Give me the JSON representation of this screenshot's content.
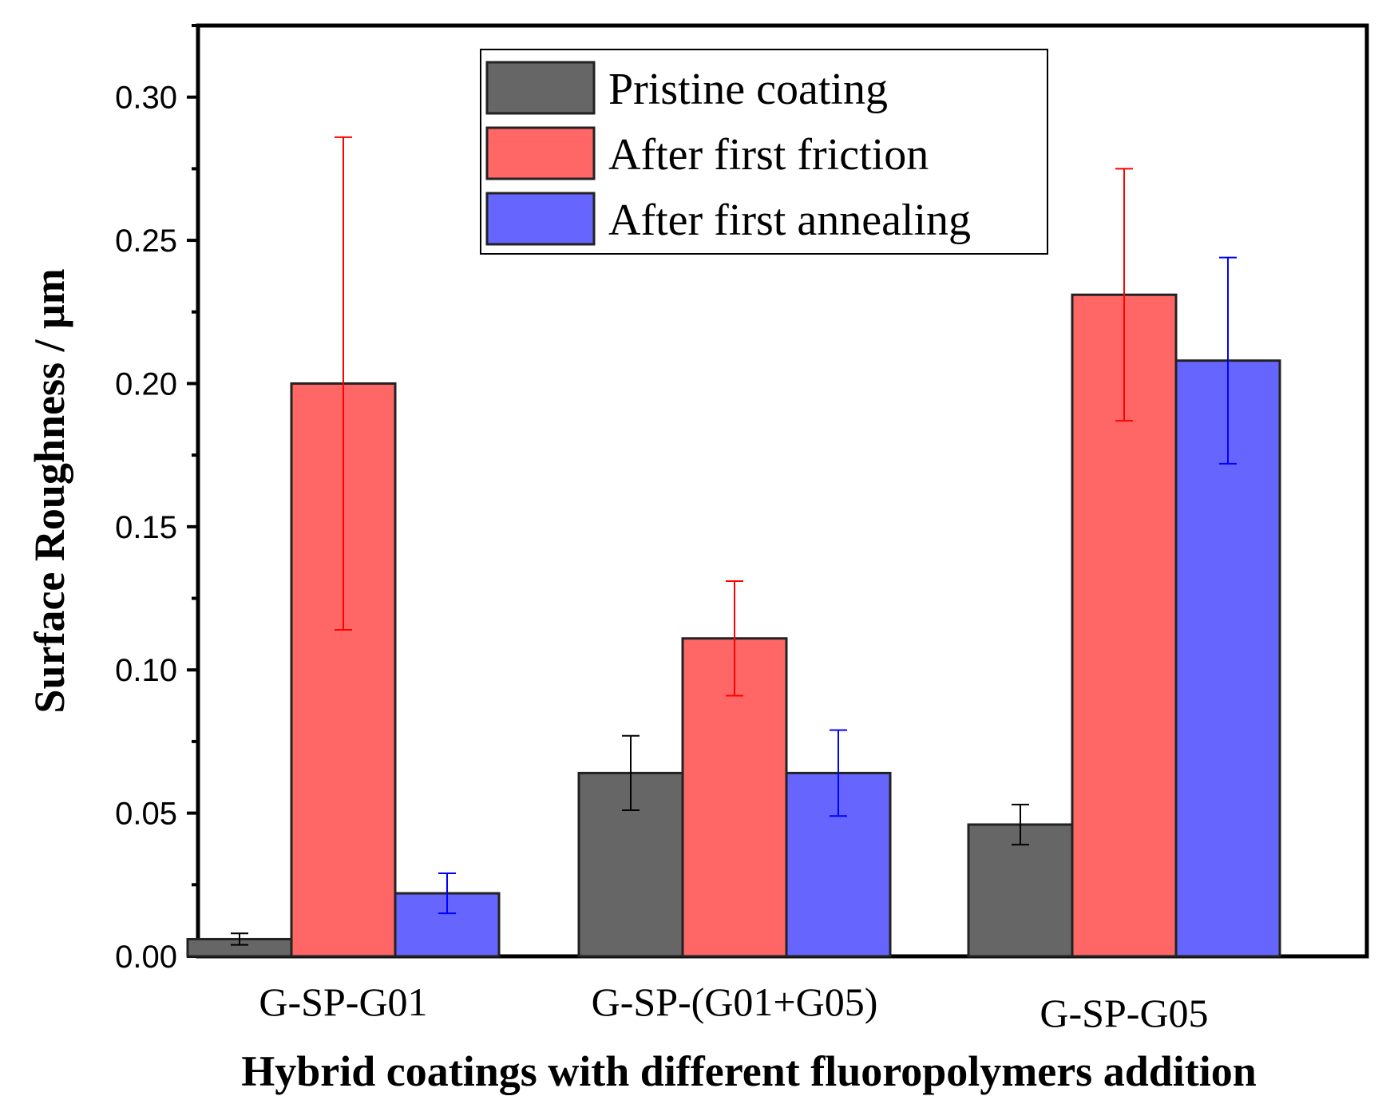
{
  "chart_data": {
    "type": "bar",
    "title": "",
    "xlabel": "Hybrid coatings with different fluoropolymers addition",
    "ylabel": "Surface Roughness / μm",
    "categories": [
      "G-SP-G01",
      "G-SP-(G01+G05)",
      "G-SP-G05"
    ],
    "ylim": [
      0,
      0.325
    ],
    "yticks": [
      "0.00",
      "0.05",
      "0.10",
      "0.15",
      "0.20",
      "0.25",
      "0.30"
    ],
    "grid": false,
    "legend_position": "top-center",
    "series": [
      {
        "name": "Pristine coating",
        "color": "#666666",
        "error_color": "#000000",
        "values": [
          0.006,
          0.064,
          0.046
        ],
        "errors": [
          0.002,
          0.013,
          0.007
        ]
      },
      {
        "name": "After first friction",
        "color": "#ff6666",
        "error_color": "#ff0000",
        "values": [
          0.2,
          0.111,
          0.231
        ],
        "errors": [
          0.086,
          0.02,
          0.044
        ]
      },
      {
        "name": "After first annealing",
        "color": "#6666ff",
        "error_color": "#0000ff",
        "values": [
          0.022,
          0.064,
          0.208
        ],
        "errors": [
          0.007,
          0.015,
          0.036
        ]
      }
    ]
  }
}
